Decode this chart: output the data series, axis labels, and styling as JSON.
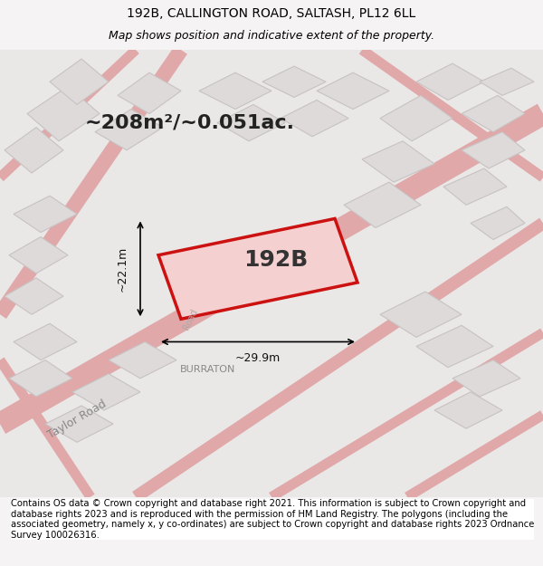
{
  "title_line1": "192B, CALLINGTON ROAD, SALTASH, PL12 6LL",
  "title_line2": "Map shows position and indicative extent of the property.",
  "footer_text": "Contains OS data © Crown copyright and database right 2021. This information is subject to Crown copyright and database rights 2023 and is reproduced with the permission of HM Land Registry. The polygons (including the associated geometry, namely x, y co-ordinates) are subject to Crown copyright and database rights 2023 Ordnance Survey 100026316.",
  "area_label": "~208m²/~0.051ac.",
  "property_label": "192B",
  "dim_width": "~29.9m",
  "dim_height": "~22.1m",
  "road_label1": "BURRATON",
  "road_label2": "Taylor Road",
  "bg_color": "#f0eeee",
  "map_bg": "#f0eeee",
  "building_fill": "#e8e4e4",
  "building_stroke": "#c8c0c0",
  "highlight_fill": "none",
  "highlight_stroke": "#e83030",
  "road_color": "#e8a0a0",
  "title_fontsize": 10,
  "footer_fontsize": 7.5
}
